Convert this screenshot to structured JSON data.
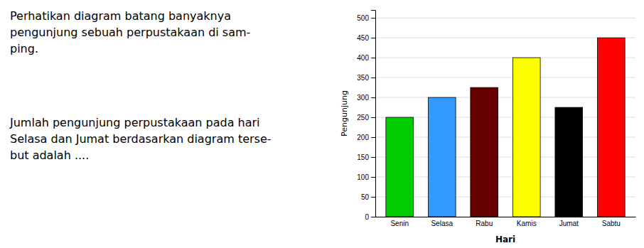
{
  "chart_data": {
    "type": "bar",
    "annotations": [
      "Perhatikan diagram batang banyaknya\npengunjung sebuah perpustakaan di sam-\nping.",
      "Jumlah pengunjung perpustakaan pada hari\nSelasa dan Jumat berdasarkan diagram terse-\nbut adalah ...."
    ],
    "categories": [
      "Senin",
      "Selasa",
      "Rabu",
      "Kamis",
      "Jumat",
      "Sabtu"
    ],
    "values": [
      250,
      300,
      325,
      400,
      275,
      450
    ],
    "colors": [
      "#00cc00",
      "#3399ff",
      "#660000",
      "#ffff00",
      "#000000",
      "#ff0000"
    ],
    "xlabel": "Hari",
    "ylabel": "Pengunjung",
    "ylim": [
      0,
      520
    ],
    "yticks": [
      0,
      50,
      100,
      150,
      200,
      250,
      300,
      350,
      400,
      450,
      500
    ],
    "grid": true
  }
}
